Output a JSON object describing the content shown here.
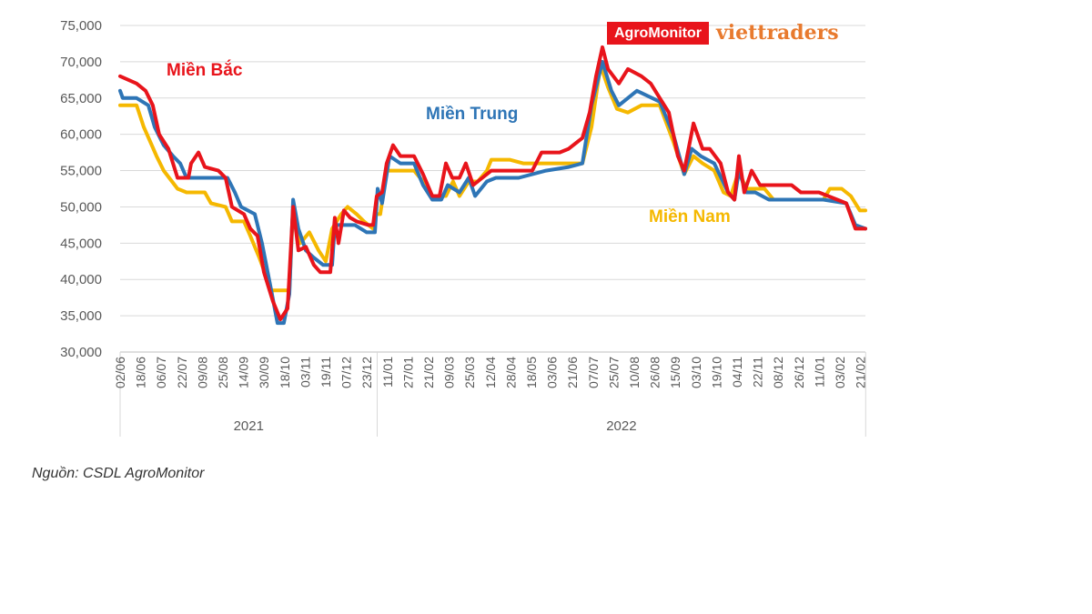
{
  "chart_data": {
    "type": "line",
    "title": "",
    "xlabel": "",
    "ylabel": "",
    "ylim": [
      30000,
      75000
    ],
    "yticks": [
      "30,000",
      "35,000",
      "40,000",
      "45,000",
      "50,000",
      "55,000",
      "60,000",
      "65,000",
      "70,000",
      "75,000"
    ],
    "ytick_values": [
      30000,
      35000,
      40000,
      45000,
      50000,
      55000,
      60000,
      65000,
      70000,
      75000
    ],
    "x_unit": "tick index",
    "xlim": [
      0,
      36.25
    ],
    "xtick_labels": [
      "02/06",
      "18/06",
      "06/07",
      "22/07",
      "09/08",
      "25/08",
      "14/09",
      "30/09",
      "18/10",
      "03/11",
      "19/11",
      "07/12",
      "23/12",
      "11/01",
      "27/01",
      "21/02",
      "09/03",
      "25/03",
      "12/04",
      "28/04",
      "18/05",
      "03/06",
      "21/06",
      "07/07",
      "25/07",
      "10/08",
      "26/08",
      "15/09",
      "03/10",
      "19/10",
      "04/11",
      "22/11",
      "08/12",
      "26/12",
      "11/01",
      "03/02",
      "21/02"
    ],
    "year_groups": [
      {
        "label": "2021",
        "from": 0,
        "to": 12.5
      },
      {
        "label": "2022",
        "from": 12.5,
        "to": 36.25
      }
    ],
    "grid": true,
    "series": [
      {
        "name": "Miền Bắc",
        "color": "#e8141b",
        "points": [
          [
            0,
            68000
          ],
          [
            0.8,
            67000
          ],
          [
            1.24,
            66000
          ],
          [
            1.59,
            64000
          ],
          [
            1.9,
            60000
          ],
          [
            2.35,
            58000
          ],
          [
            2.79,
            54000
          ],
          [
            3.32,
            54000
          ],
          [
            3.45,
            56000
          ],
          [
            3.81,
            57500
          ],
          [
            4.12,
            55500
          ],
          [
            4.78,
            55000
          ],
          [
            5.13,
            54000
          ],
          [
            5.44,
            50000
          ],
          [
            6.02,
            49000
          ],
          [
            6.33,
            47000
          ],
          [
            6.68,
            46000
          ],
          [
            6.99,
            41000
          ],
          [
            7.43,
            37000
          ],
          [
            7.79,
            34500
          ],
          [
            8.14,
            36000
          ],
          [
            8.41,
            50000
          ],
          [
            8.67,
            44000
          ],
          [
            9.03,
            44500
          ],
          [
            9.42,
            42000
          ],
          [
            9.73,
            41000
          ],
          [
            10.22,
            41000
          ],
          [
            10.44,
            48500
          ],
          [
            10.62,
            45000
          ],
          [
            10.88,
            49500
          ],
          [
            11.19,
            48500
          ],
          [
            11.5,
            48000
          ],
          [
            12.08,
            47500
          ],
          [
            12.3,
            47500
          ],
          [
            12.48,
            51500
          ],
          [
            12.74,
            52000
          ],
          [
            12.96,
            56000
          ],
          [
            13.27,
            58500
          ],
          [
            13.63,
            57000
          ],
          [
            14.29,
            57000
          ],
          [
            14.73,
            54500
          ],
          [
            15.18,
            51500
          ],
          [
            15.53,
            51500
          ],
          [
            15.84,
            56000
          ],
          [
            16.15,
            54000
          ],
          [
            16.5,
            54000
          ],
          [
            16.81,
            56000
          ],
          [
            17.17,
            53000
          ],
          [
            17.61,
            54000
          ],
          [
            18.05,
            55000
          ],
          [
            20.04,
            55000
          ],
          [
            20.49,
            57500
          ],
          [
            21.37,
            57500
          ],
          [
            21.81,
            58000
          ],
          [
            22.48,
            59500
          ],
          [
            22.83,
            63000
          ],
          [
            23.14,
            68000
          ],
          [
            23.45,
            72000
          ],
          [
            23.72,
            69000
          ],
          [
            24.25,
            67000
          ],
          [
            24.69,
            69000
          ],
          [
            25.35,
            68000
          ],
          [
            25.8,
            67000
          ],
          [
            26.24,
            65000
          ],
          [
            26.68,
            63000
          ],
          [
            27.12,
            57000
          ],
          [
            27.43,
            55000
          ],
          [
            27.88,
            61500
          ],
          [
            28.32,
            58000
          ],
          [
            28.67,
            58000
          ],
          [
            29.2,
            56000
          ],
          [
            29.56,
            52000
          ],
          [
            29.87,
            51000
          ],
          [
            30.09,
            57000
          ],
          [
            30.35,
            52000
          ],
          [
            30.71,
            55000
          ],
          [
            31.11,
            53000
          ],
          [
            32.65,
            53000
          ],
          [
            33.1,
            52000
          ],
          [
            33.98,
            52000
          ],
          [
            34.87,
            51000
          ],
          [
            35.31,
            50500
          ],
          [
            35.75,
            47000
          ],
          [
            36.24,
            47000
          ]
        ]
      },
      {
        "name": "Miền Trung",
        "color": "#2e75b6",
        "points": [
          [
            0,
            66000
          ],
          [
            0.13,
            65000
          ],
          [
            0.8,
            65000
          ],
          [
            1.37,
            64000
          ],
          [
            1.68,
            61000
          ],
          [
            2.12,
            58500
          ],
          [
            2.57,
            57000
          ],
          [
            2.92,
            56000
          ],
          [
            3.23,
            54000
          ],
          [
            5.22,
            54000
          ],
          [
            5.58,
            52000
          ],
          [
            5.88,
            50000
          ],
          [
            6.55,
            49000
          ],
          [
            6.9,
            45000
          ],
          [
            7.35,
            38500
          ],
          [
            7.65,
            34000
          ],
          [
            7.96,
            34000
          ],
          [
            8.23,
            38000
          ],
          [
            8.41,
            51000
          ],
          [
            8.67,
            47000
          ],
          [
            9.03,
            44000
          ],
          [
            9.42,
            43000
          ],
          [
            9.87,
            42000
          ],
          [
            10.31,
            42000
          ],
          [
            10.44,
            47500
          ],
          [
            11.42,
            47500
          ],
          [
            11.99,
            46500
          ],
          [
            12.39,
            46500
          ],
          [
            12.52,
            52500
          ],
          [
            12.74,
            50500
          ],
          [
            13.1,
            57000
          ],
          [
            13.63,
            56000
          ],
          [
            14.29,
            56000
          ],
          [
            14.73,
            53000
          ],
          [
            15.18,
            51000
          ],
          [
            15.62,
            51000
          ],
          [
            15.93,
            53000
          ],
          [
            16.5,
            52000
          ],
          [
            16.95,
            54000
          ],
          [
            17.26,
            51500
          ],
          [
            17.83,
            53500
          ],
          [
            18.27,
            54000
          ],
          [
            19.38,
            54000
          ],
          [
            20.71,
            55000
          ],
          [
            21.81,
            55500
          ],
          [
            22.48,
            56000
          ],
          [
            22.92,
            64000
          ],
          [
            23.45,
            70000
          ],
          [
            23.89,
            66000
          ],
          [
            24.25,
            64000
          ],
          [
            24.69,
            65000
          ],
          [
            25.13,
            66000
          ],
          [
            26.24,
            64500
          ],
          [
            26.9,
            60000
          ],
          [
            27.43,
            54500
          ],
          [
            27.79,
            58000
          ],
          [
            28.23,
            57000
          ],
          [
            28.89,
            56000
          ],
          [
            29.56,
            52000
          ],
          [
            29.87,
            51000
          ],
          [
            30.09,
            55000
          ],
          [
            30.44,
            52000
          ],
          [
            30.88,
            52000
          ],
          [
            31.55,
            51000
          ],
          [
            34.2,
            51000
          ],
          [
            35.31,
            50500
          ],
          [
            35.75,
            47500
          ],
          [
            36.24,
            47000
          ]
        ]
      },
      {
        "name": "Miền Nam",
        "color": "#f5b800",
        "points": [
          [
            0,
            64000
          ],
          [
            0.8,
            64000
          ],
          [
            1.15,
            61000
          ],
          [
            1.46,
            59000
          ],
          [
            1.77,
            57000
          ],
          [
            2.12,
            55000
          ],
          [
            2.79,
            52500
          ],
          [
            3.23,
            52000
          ],
          [
            4.12,
            52000
          ],
          [
            4.42,
            50500
          ],
          [
            5.13,
            50000
          ],
          [
            5.44,
            48000
          ],
          [
            6.02,
            48000
          ],
          [
            6.33,
            46000
          ],
          [
            6.77,
            43000
          ],
          [
            7.35,
            38500
          ],
          [
            8.23,
            38500
          ],
          [
            8.41,
            50000
          ],
          [
            8.76,
            45000
          ],
          [
            9.2,
            46500
          ],
          [
            9.65,
            44000
          ],
          [
            10.0,
            42500
          ],
          [
            10.31,
            47000
          ],
          [
            10.75,
            49000
          ],
          [
            11.06,
            50000
          ],
          [
            11.5,
            49000
          ],
          [
            11.86,
            48000
          ],
          [
            12.3,
            47000
          ],
          [
            12.43,
            49000
          ],
          [
            12.65,
            49000
          ],
          [
            12.96,
            55000
          ],
          [
            14.29,
            55000
          ],
          [
            14.73,
            53500
          ],
          [
            15.18,
            51500
          ],
          [
            15.84,
            51500
          ],
          [
            16.19,
            53500
          ],
          [
            16.5,
            51500
          ],
          [
            16.95,
            53500
          ],
          [
            17.39,
            53500
          ],
          [
            17.83,
            55000
          ],
          [
            18.05,
            56500
          ],
          [
            18.94,
            56500
          ],
          [
            19.6,
            56000
          ],
          [
            22.48,
            56000
          ],
          [
            22.92,
            61000
          ],
          [
            23.36,
            69500
          ],
          [
            23.72,
            66500
          ],
          [
            24.16,
            63500
          ],
          [
            24.69,
            63000
          ],
          [
            25.35,
            64000
          ],
          [
            26.24,
            64000
          ],
          [
            26.9,
            59000
          ],
          [
            27.43,
            54500
          ],
          [
            27.88,
            57000
          ],
          [
            28.32,
            56000
          ],
          [
            28.89,
            55000
          ],
          [
            29.34,
            52000
          ],
          [
            29.69,
            51500
          ],
          [
            30.09,
            55000
          ],
          [
            30.44,
            52500
          ],
          [
            31.33,
            52500
          ],
          [
            31.77,
            51000
          ],
          [
            34.2,
            51000
          ],
          [
            34.51,
            52500
          ],
          [
            35.09,
            52500
          ],
          [
            35.53,
            51500
          ],
          [
            35.97,
            49500
          ],
          [
            36.24,
            49500
          ]
        ]
      }
    ],
    "source": "Nguồn: CSDL AgroMonitor",
    "logo": {
      "brand1": "AgroMonitor",
      "brand2": "viettraders"
    }
  }
}
